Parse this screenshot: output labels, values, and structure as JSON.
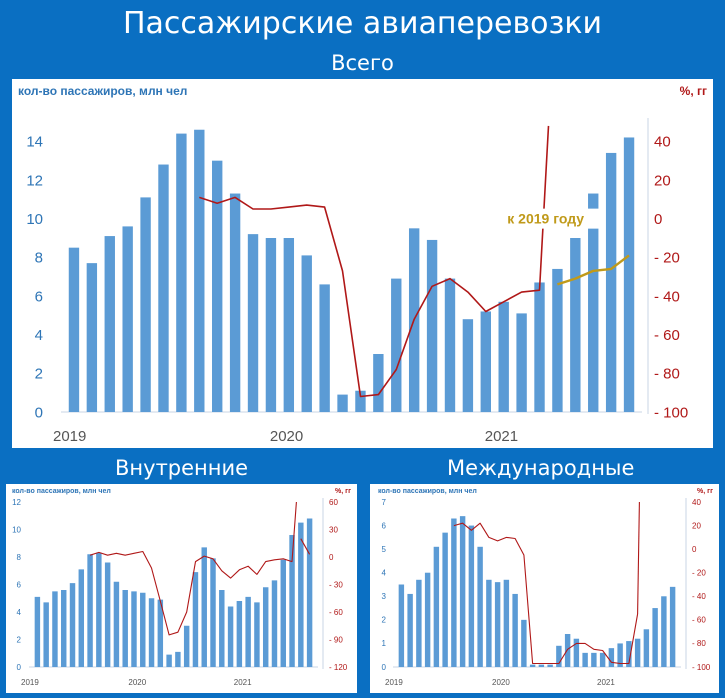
{
  "title": "Пассажирские авиаперевозки",
  "sections": {
    "main": "Всего",
    "domestic": "Внутренние",
    "international": "Международные"
  },
  "colors": {
    "bar": "#5b9bd5",
    "line": "#b01818",
    "line2019": "#c09a1a",
    "leftAxis": "#2e75b6",
    "rightAxis": "#b01818"
  },
  "chart_data": [
    {
      "id": "total",
      "type": "bar",
      "title": "Всего",
      "ylabel": "кол-во пассажиров, млн чел",
      "y2label": "%, гг",
      "ylim": [
        0,
        15
      ],
      "yticks": [
        0,
        2,
        4,
        6,
        8,
        10,
        12,
        14
      ],
      "y2lim": [
        -100,
        50
      ],
      "y2ticks": [
        40,
        20,
        0,
        -20,
        -40,
        -60,
        -80,
        -100
      ],
      "xticks": [
        {
          "label": "2019",
          "index": 0
        },
        {
          "label": "2020",
          "index": 12
        },
        {
          "label": "2021",
          "index": 24
        }
      ],
      "series": [
        {
          "type": "bar",
          "values": [
            8.5,
            7.7,
            9.1,
            9.6,
            11.1,
            12.8,
            14.4,
            14.6,
            13.0,
            11.3,
            9.2,
            9.0,
            9.0,
            8.1,
            6.6,
            0.9,
            1.1,
            3.0,
            6.9,
            9.5,
            8.9,
            6.9,
            4.8,
            5.2,
            5.7,
            5.1,
            6.7,
            7.4,
            9.0,
            11.3,
            13.4,
            14.2
          ]
        },
        {
          "type": "line",
          "axis": "y2",
          "x": [
            7,
            8,
            9,
            10,
            11,
            12,
            13,
            14,
            15,
            16,
            17,
            18,
            19,
            20,
            21,
            22,
            23,
            24,
            25,
            26,
            26.5
          ],
          "values": [
            11,
            8,
            11,
            5,
            5,
            6,
            7,
            6,
            -27,
            -92,
            -91,
            -78,
            -52,
            -35,
            -31,
            -38,
            -48,
            -43,
            -38,
            -37,
            48
          ]
        },
        {
          "type": "line",
          "axis": "y2",
          "name": "к 2019 году",
          "x": [
            27,
            28,
            29,
            30,
            31
          ],
          "values": [
            -34,
            -31,
            -27,
            -26,
            -19
          ]
        }
      ],
      "annotations": [
        {
          "text": "к 2019 году"
        }
      ]
    },
    {
      "id": "domestic",
      "type": "bar",
      "title": "Внутренние",
      "ylabel": "кол-во пассажиров, млн чел",
      "y2label": "%, гг",
      "ylim": [
        0,
        12
      ],
      "yticks": [
        0,
        2,
        4,
        6,
        8,
        10,
        12
      ],
      "y2lim": [
        -120,
        60
      ],
      "y2ticks": [
        60,
        30,
        0,
        -30,
        -60,
        -90,
        -120
      ],
      "xticks": [
        {
          "label": "2019",
          "index": 0
        },
        {
          "label": "2020",
          "index": 12
        },
        {
          "label": "2021",
          "index": 24
        }
      ],
      "series": [
        {
          "type": "bar",
          "values": [
            5.1,
            4.7,
            5.5,
            5.6,
            6.1,
            7.1,
            8.2,
            8.3,
            7.6,
            6.2,
            5.6,
            5.5,
            5.4,
            5.0,
            4.9,
            0.9,
            1.1,
            3.0,
            6.9,
            8.7,
            7.9,
            5.6,
            4.4,
            4.8,
            5.1,
            4.7,
            5.8,
            6.3,
            7.8,
            9.6,
            10.5,
            10.8
          ]
        },
        {
          "type": "line",
          "axis": "y2",
          "x": [
            6,
            7,
            8,
            9,
            10,
            11,
            12,
            13,
            14,
            15,
            16,
            17,
            18,
            19,
            20,
            21,
            22,
            23,
            24,
            25,
            26,
            27,
            28,
            29,
            29.5
          ],
          "values": [
            2,
            5,
            2,
            4,
            2,
            4,
            6,
            -12,
            -48,
            -85,
            -82,
            -60,
            -5,
            1,
            -2,
            -15,
            -23,
            -14,
            -10,
            -19,
            -5,
            -3,
            -2,
            -5,
            60
          ]
        },
        {
          "type": "line",
          "axis": "y2",
          "x": [
            30,
            31
          ],
          "values": [
            20,
            3
          ]
        }
      ]
    },
    {
      "id": "international",
      "type": "bar",
      "title": "Международные",
      "ylabel": "кол-во пассажиров, млн чел",
      "y2label": "%, гг",
      "ylim": [
        0,
        7
      ],
      "yticks": [
        0,
        1,
        2,
        3,
        4,
        5,
        6,
        7
      ],
      "y2lim": [
        -100,
        40
      ],
      "y2ticks": [
        40,
        20,
        0,
        -20,
        -40,
        -60,
        -80,
        -100
      ],
      "xticks": [
        {
          "label": "2019",
          "index": 0
        },
        {
          "label": "2020",
          "index": 12
        },
        {
          "label": "2021",
          "index": 24
        }
      ],
      "series": [
        {
          "type": "bar",
          "values": [
            3.5,
            3.1,
            3.7,
            4.0,
            5.1,
            5.7,
            6.3,
            6.4,
            6.0,
            5.1,
            3.7,
            3.6,
            3.7,
            3.1,
            2.0,
            0.1,
            0.1,
            0.1,
            0.9,
            1.4,
            1.2,
            0.6,
            0.6,
            0.6,
            0.8,
            1.0,
            1.1,
            1.2,
            1.6,
            2.5,
            3.0,
            3.4
          ]
        },
        {
          "type": "line",
          "axis": "y2",
          "x": [
            6,
            7,
            8,
            9,
            10,
            11,
            12,
            13,
            14,
            15,
            16,
            17,
            18,
            19,
            20,
            21,
            22,
            23,
            24,
            25,
            26,
            27
          ],
          "values": [
            20,
            22,
            16,
            22,
            10,
            7,
            10,
            9,
            -5,
            -97,
            -97,
            -97,
            -97,
            -85,
            -80,
            -80,
            -85,
            -86,
            -96,
            -97,
            -97,
            -55
          ]
        },
        {
          "type": "line",
          "axis": "y2",
          "x": [
            27,
            27.2
          ],
          "values": [
            -55,
            40
          ]
        }
      ]
    }
  ]
}
